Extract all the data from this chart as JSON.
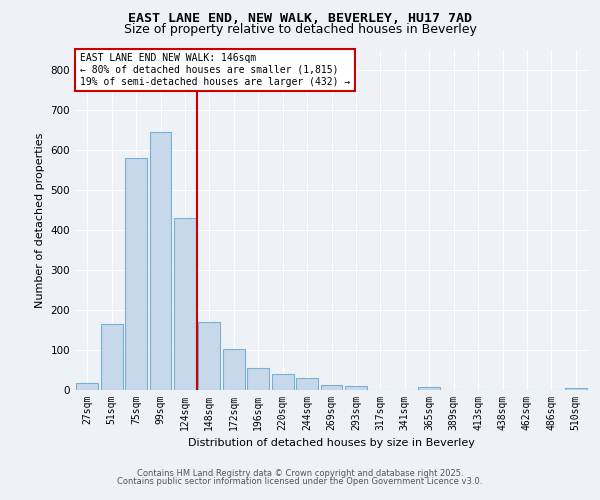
{
  "title_line1": "EAST LANE END, NEW WALK, BEVERLEY, HU17 7AD",
  "title_line2": "Size of property relative to detached houses in Beverley",
  "xlabel": "Distribution of detached houses by size in Beverley",
  "ylabel": "Number of detached properties",
  "bin_labels": [
    "27sqm",
    "51sqm",
    "75sqm",
    "99sqm",
    "124sqm",
    "148sqm",
    "172sqm",
    "196sqm",
    "220sqm",
    "244sqm",
    "269sqm",
    "293sqm",
    "317sqm",
    "341sqm",
    "365sqm",
    "389sqm",
    "413sqm",
    "438sqm",
    "462sqm",
    "486sqm",
    "510sqm"
  ],
  "bar_values": [
    17,
    165,
    580,
    645,
    430,
    170,
    103,
    55,
    40,
    30,
    12,
    10,
    0,
    0,
    8,
    0,
    0,
    0,
    0,
    0,
    6
  ],
  "bar_color": "#c8d8eb",
  "bar_edgecolor": "#7aafd4",
  "vline_color": "#cc0000",
  "vline_x_index": 4.5,
  "annotation_text": "EAST LANE END NEW WALK: 146sqm\n← 80% of detached houses are smaller (1,815)\n19% of semi-detached houses are larger (432) →",
  "annotation_box_color": "white",
  "annotation_box_edgecolor": "#cc0000",
  "footer_line1": "Contains HM Land Registry data © Crown copyright and database right 2025.",
  "footer_line2": "Contains public sector information licensed under the Open Government Licence v3.0.",
  "ylim": [
    0,
    850
  ],
  "yticks": [
    0,
    100,
    200,
    300,
    400,
    500,
    600,
    700,
    800
  ],
  "background_color": "#eef2f7",
  "grid_color": "white",
  "title1_fontsize": 9.5,
  "title2_fontsize": 9.0,
  "ylabel_fontsize": 8,
  "xlabel_fontsize": 8,
  "tick_fontsize": 7,
  "footer_fontsize": 6,
  "annot_fontsize": 7
}
